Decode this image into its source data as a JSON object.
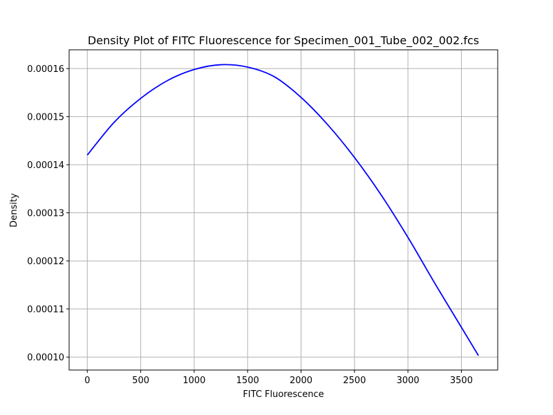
{
  "chart_data": {
    "type": "line",
    "title": "Density Plot of FITC Fluorescence for Specimen_001_Tube_002_002.fcs",
    "xlabel": "FITC Fluorescence",
    "ylabel": "Density",
    "xlim": [
      -170,
      3840
    ],
    "ylim": [
      9.73e-05,
      0.0001639
    ],
    "x_ticks": [
      0,
      500,
      1000,
      1500,
      2000,
      2500,
      3000,
      3500
    ],
    "x_tick_labels": [
      "0",
      "500",
      "1000",
      "1500",
      "2000",
      "2500",
      "3000",
      "3500"
    ],
    "y_ticks": [
      0.0001,
      0.00011,
      0.00012,
      0.00013,
      0.00014,
      0.00015,
      0.00016
    ],
    "y_tick_labels": [
      "0.00010",
      "0.00011",
      "0.00012",
      "0.00013",
      "0.00014",
      "0.00015",
      "0.00016"
    ],
    "grid": true,
    "series": [
      {
        "color": "#0000ff",
        "x": [
          0,
          250,
          500,
          750,
          1000,
          1250,
          1500,
          1750,
          2000,
          2250,
          2500,
          2750,
          3000,
          3250,
          3500,
          3660
        ],
        "y": [
          0.000142,
          0.0001488,
          0.0001538,
          0.0001575,
          0.0001598,
          0.0001608,
          0.0001603,
          0.0001583,
          0.000154,
          0.0001483,
          0.0001415,
          0.0001337,
          0.0001249,
          0.0001154,
          0.0001062,
          0.0001003
        ]
      }
    ]
  }
}
